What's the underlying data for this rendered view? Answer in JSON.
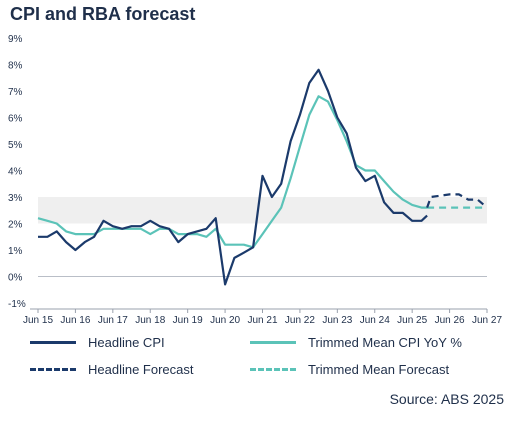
{
  "chart_data": {
    "type": "line",
    "title": "CPI and RBA forecast",
    "source": "Source: ABS 2025",
    "ylim": [
      -1,
      9
    ],
    "y_ticks": [
      {
        "value": 9,
        "label": "9%"
      },
      {
        "value": 8,
        "label": "8%"
      },
      {
        "value": 7,
        "label": "7%"
      },
      {
        "value": 6,
        "label": "6%"
      },
      {
        "value": 5,
        "label": "5%"
      },
      {
        "value": 4,
        "label": "4%"
      },
      {
        "value": 3,
        "label": "3%"
      },
      {
        "value": 2,
        "label": "2%"
      },
      {
        "value": 1,
        "label": "1%"
      },
      {
        "value": 0,
        "label": "0%"
      },
      {
        "value": -1,
        "label": "-1%"
      }
    ],
    "x_ticks": [
      {
        "value": 2015.5,
        "label": "Jun 15"
      },
      {
        "value": 2016.5,
        "label": "Jun 16"
      },
      {
        "value": 2017.5,
        "label": "Jun 17"
      },
      {
        "value": 2018.5,
        "label": "Jun 18"
      },
      {
        "value": 2019.5,
        "label": "Jun 19"
      },
      {
        "value": 2020.5,
        "label": "Jun 20"
      },
      {
        "value": 2021.5,
        "label": "Jun 21"
      },
      {
        "value": 2022.5,
        "label": "Jun 22"
      },
      {
        "value": 2023.5,
        "label": "Jun 23"
      },
      {
        "value": 2024.5,
        "label": "Jun 24"
      },
      {
        "value": 2025.5,
        "label": "Jun 25"
      },
      {
        "value": 2026.5,
        "label": "Jun 26"
      },
      {
        "value": 2027.5,
        "label": "Jun 27"
      }
    ],
    "xlim": [
      2015.5,
      2027.5
    ],
    "target_band": [
      2,
      3
    ],
    "series": [
      {
        "name": "Headline CPI",
        "color": "#1b3a6b",
        "dash": "solid",
        "points": [
          [
            2015.5,
            1.5
          ],
          [
            2015.75,
            1.5
          ],
          [
            2016.0,
            1.7
          ],
          [
            2016.25,
            1.3
          ],
          [
            2016.5,
            1.0
          ],
          [
            2016.75,
            1.3
          ],
          [
            2017.0,
            1.5
          ],
          [
            2017.25,
            2.1
          ],
          [
            2017.5,
            1.9
          ],
          [
            2017.75,
            1.8
          ],
          [
            2018.0,
            1.9
          ],
          [
            2018.25,
            1.9
          ],
          [
            2018.5,
            2.1
          ],
          [
            2018.75,
            1.9
          ],
          [
            2019.0,
            1.8
          ],
          [
            2019.25,
            1.3
          ],
          [
            2019.5,
            1.6
          ],
          [
            2019.75,
            1.7
          ],
          [
            2020.0,
            1.8
          ],
          [
            2020.25,
            2.2
          ],
          [
            2020.5,
            -0.3
          ],
          [
            2020.75,
            0.7
          ],
          [
            2021.0,
            0.9
          ],
          [
            2021.25,
            1.1
          ],
          [
            2021.5,
            3.8
          ],
          [
            2021.75,
            3.0
          ],
          [
            2022.0,
            3.5
          ],
          [
            2022.25,
            5.1
          ],
          [
            2022.5,
            6.1
          ],
          [
            2022.75,
            7.3
          ],
          [
            2023.0,
            7.8
          ],
          [
            2023.25,
            7.0
          ],
          [
            2023.5,
            6.0
          ],
          [
            2023.75,
            5.4
          ],
          [
            2024.0,
            4.1
          ],
          [
            2024.25,
            3.6
          ],
          [
            2024.5,
            3.8
          ],
          [
            2024.75,
            2.8
          ],
          [
            2025.0,
            2.4
          ],
          [
            2025.25,
            2.4
          ],
          [
            2025.5,
            2.1
          ],
          [
            2025.75,
            2.1
          ],
          [
            2025.9,
            2.3
          ]
        ]
      },
      {
        "name": "Headline Forecast",
        "color": "#1b3a6b",
        "dash": "dashed",
        "points": [
          [
            2025.9,
            2.6
          ],
          [
            2026.0,
            3.0
          ],
          [
            2026.5,
            3.1
          ],
          [
            2026.75,
            3.1
          ],
          [
            2027.0,
            2.9
          ],
          [
            2027.25,
            2.9
          ],
          [
            2027.5,
            2.6
          ]
        ]
      },
      {
        "name": "Trimmed Mean CPI YoY %",
        "color": "#5bc3b8",
        "dash": "solid",
        "points": [
          [
            2015.5,
            2.2
          ],
          [
            2015.75,
            2.1
          ],
          [
            2016.0,
            2.0
          ],
          [
            2016.25,
            1.7
          ],
          [
            2016.5,
            1.6
          ],
          [
            2016.75,
            1.6
          ],
          [
            2017.0,
            1.6
          ],
          [
            2017.25,
            1.8
          ],
          [
            2017.5,
            1.8
          ],
          [
            2017.75,
            1.8
          ],
          [
            2018.0,
            1.8
          ],
          [
            2018.25,
            1.8
          ],
          [
            2018.5,
            1.6
          ],
          [
            2018.75,
            1.8
          ],
          [
            2019.0,
            1.8
          ],
          [
            2019.25,
            1.6
          ],
          [
            2019.5,
            1.6
          ],
          [
            2019.75,
            1.6
          ],
          [
            2020.0,
            1.5
          ],
          [
            2020.25,
            1.8
          ],
          [
            2020.5,
            1.2
          ],
          [
            2020.75,
            1.2
          ],
          [
            2021.0,
            1.2
          ],
          [
            2021.25,
            1.1
          ],
          [
            2021.5,
            1.6
          ],
          [
            2021.75,
            2.1
          ],
          [
            2022.0,
            2.6
          ],
          [
            2022.25,
            3.7
          ],
          [
            2022.5,
            4.9
          ],
          [
            2022.75,
            6.1
          ],
          [
            2023.0,
            6.8
          ],
          [
            2023.25,
            6.6
          ],
          [
            2023.5,
            5.9
          ],
          [
            2023.75,
            5.1
          ],
          [
            2024.0,
            4.2
          ],
          [
            2024.25,
            4.0
          ],
          [
            2024.5,
            4.0
          ],
          [
            2024.75,
            3.6
          ],
          [
            2025.0,
            3.2
          ],
          [
            2025.25,
            2.9
          ],
          [
            2025.5,
            2.7
          ],
          [
            2025.75,
            2.6
          ],
          [
            2025.9,
            2.6
          ]
        ]
      },
      {
        "name": "Trimmed Mean Forecast",
        "color": "#5bc3b8",
        "dash": "dashed",
        "points": [
          [
            2025.9,
            2.6
          ],
          [
            2026.25,
            2.6
          ],
          [
            2026.75,
            2.6
          ],
          [
            2027.25,
            2.6
          ],
          [
            2027.5,
            2.6
          ]
        ]
      }
    ],
    "legend": [
      {
        "label": "Headline CPI",
        "color": "#1b3a6b",
        "dash": "solid"
      },
      {
        "label": "Trimmed Mean CPI YoY %",
        "color": "#5bc3b8",
        "dash": "solid"
      },
      {
        "label": "Headline Forecast",
        "color": "#1b3a6b",
        "dash": "dashed"
      },
      {
        "label": "Trimmed Mean Forecast",
        "color": "#5bc3b8",
        "dash": "dashed"
      }
    ],
    "legend_position": "bottom",
    "grid": false
  }
}
